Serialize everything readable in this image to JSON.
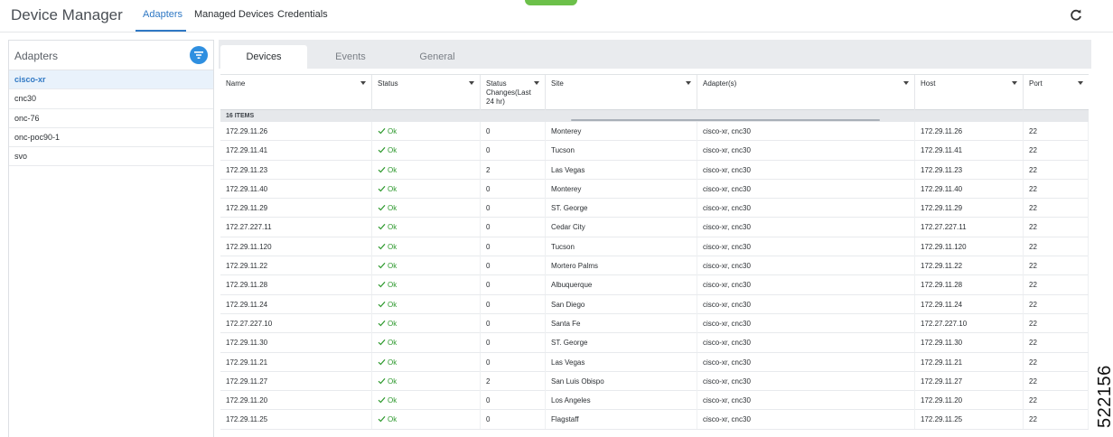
{
  "header": {
    "app_title": "Device Manager",
    "tabs": [
      "Adapters",
      "Managed Devices",
      "Credentials"
    ],
    "active_tab": "Adapters"
  },
  "sidebar": {
    "title": "Adapters",
    "selected": "cisco-xr",
    "items": [
      "cisco-xr",
      "cnc30",
      "onc-76",
      "onc-poc90-1",
      "svo"
    ]
  },
  "panel": {
    "tabs": [
      "Devices",
      "Events",
      "General"
    ],
    "active_tab": "Devices"
  },
  "table": {
    "columns": [
      "Name",
      "Status",
      "Status Changes(Last 24 hr)",
      "Site",
      "Adapter(s)",
      "Host",
      "Port"
    ],
    "group_label": "16 ITEMS",
    "rows": [
      [
        "172.29.11.26",
        "Ok",
        "0",
        "Monterey",
        "cisco-xr, cnc30",
        "172.29.11.26",
        "22"
      ],
      [
        "172.29.11.41",
        "Ok",
        "0",
        "Tucson",
        "cisco-xr, cnc30",
        "172.29.11.41",
        "22"
      ],
      [
        "172.29.11.23",
        "Ok",
        "2",
        "Las Vegas",
        "cisco-xr, cnc30",
        "172.29.11.23",
        "22"
      ],
      [
        "172.29.11.40",
        "Ok",
        "0",
        "Monterey",
        "cisco-xr, cnc30",
        "172.29.11.40",
        "22"
      ],
      [
        "172.29.11.29",
        "Ok",
        "0",
        "ST. George",
        "cisco-xr, cnc30",
        "172.29.11.29",
        "22"
      ],
      [
        "172.27.227.11",
        "Ok",
        "0",
        "Cedar City",
        "cisco-xr, cnc30",
        "172.27.227.11",
        "22"
      ],
      [
        "172.29.11.120",
        "Ok",
        "0",
        "Tucson",
        "cisco-xr, cnc30",
        "172.29.11.120",
        "22"
      ],
      [
        "172.29.11.22",
        "Ok",
        "0",
        "Mortero Palms",
        "cisco-xr, cnc30",
        "172.29.11.22",
        "22"
      ],
      [
        "172.29.11.28",
        "Ok",
        "0",
        "Albuquerque",
        "cisco-xr, cnc30",
        "172.29.11.28",
        "22"
      ],
      [
        "172.29.11.24",
        "Ok",
        "0",
        "San Diego",
        "cisco-xr, cnc30",
        "172.29.11.24",
        "22"
      ],
      [
        "172.27.227.10",
        "Ok",
        "0",
        "Santa Fe",
        "cisco-xr, cnc30",
        "172.27.227.10",
        "22"
      ],
      [
        "172.29.11.30",
        "Ok",
        "0",
        "ST. George",
        "cisco-xr, cnc30",
        "172.29.11.30",
        "22"
      ],
      [
        "172.29.11.21",
        "Ok",
        "0",
        "Las Vegas",
        "cisco-xr, cnc30",
        "172.29.11.21",
        "22"
      ],
      [
        "172.29.11.27",
        "Ok",
        "2",
        "San Luis Obispo",
        "cisco-xr, cnc30",
        "172.29.11.27",
        "22"
      ],
      [
        "172.29.11.20",
        "Ok",
        "0",
        "Los Angeles",
        "cisco-xr, cnc30",
        "172.29.11.20",
        "22"
      ],
      [
        "172.29.11.25",
        "Ok",
        "0",
        "Flagstaff",
        "cisco-xr, cnc30",
        "172.29.11.25",
        "22"
      ]
    ]
  },
  "figure_id": "522156",
  "colors": {
    "accent": "#2f78c4",
    "ok": "#2f9a2f",
    "selected_bg": "#e9f2fb",
    "status_pill": "#6cc04a"
  }
}
